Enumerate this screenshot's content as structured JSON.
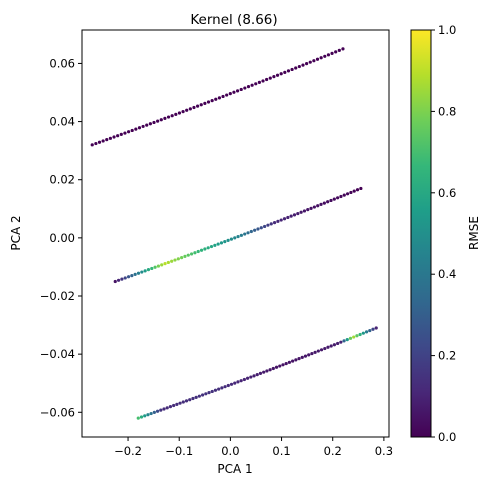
{
  "chart_data": {
    "type": "scatter",
    "title": "Kernel (8.66)",
    "xlabel": "PCA 1",
    "ylabel": "PCA 2",
    "xlim": [
      -0.29,
      0.31
    ],
    "ylim": [
      -0.0685,
      0.0715
    ],
    "xticks": [
      -0.2,
      -0.1,
      0.0,
      0.1,
      0.2,
      0.3
    ],
    "xtick_labels": [
      "−0.2",
      "−0.1",
      "0.0",
      "0.1",
      "0.2",
      "0.3"
    ],
    "yticks": [
      -0.06,
      -0.04,
      -0.02,
      0.0,
      0.02,
      0.04,
      0.06
    ],
    "ytick_labels": [
      "−0.06",
      "−0.04",
      "−0.02",
      "0.00",
      "0.02",
      "0.04",
      "0.06"
    ],
    "colorbar": {
      "label": "RMSE",
      "colormap": "viridis",
      "range": [
        0.0,
        1.0
      ],
      "ticks": [
        0.0,
        0.2,
        0.4,
        0.6,
        0.8,
        1.0
      ],
      "tick_labels": [
        "0.0",
        "0.2",
        "0.4",
        "0.6",
        "0.8",
        "1.0"
      ]
    },
    "viridis_stops": [
      "#440154",
      "#482878",
      "#3e4989",
      "#31688e",
      "#26828e",
      "#1f9e89",
      "#35b779",
      "#6ece58",
      "#b5de2b",
      "#fde725"
    ],
    "series": [
      {
        "x_range": [
          -0.27,
          0.22
        ],
        "y_range": [
          0.032,
          0.065
        ],
        "n_points": 70,
        "rmse_profile": [
          [
            0.0,
            0.0
          ],
          [
            1.0,
            0.0
          ]
        ]
      },
      {
        "x_range": [
          -0.225,
          0.255
        ],
        "y_range": [
          -0.015,
          0.017
        ],
        "n_points": 75,
        "rmse_profile": [
          [
            0.0,
            0.05
          ],
          [
            0.1,
            0.45
          ],
          [
            0.2,
            0.9
          ],
          [
            0.35,
            0.65
          ],
          [
            0.5,
            0.45
          ],
          [
            0.65,
            0.12
          ],
          [
            0.8,
            0.05
          ],
          [
            1.0,
            0.0
          ]
        ]
      },
      {
        "x_range": [
          -0.18,
          0.285
        ],
        "y_range": [
          -0.062,
          -0.031
        ],
        "n_points": 75,
        "rmse_profile": [
          [
            0.0,
            0.7
          ],
          [
            0.1,
            0.12
          ],
          [
            0.3,
            0.15
          ],
          [
            0.6,
            0.05
          ],
          [
            0.85,
            0.08
          ],
          [
            0.9,
            0.9
          ],
          [
            1.0,
            0.1
          ]
        ]
      }
    ]
  }
}
